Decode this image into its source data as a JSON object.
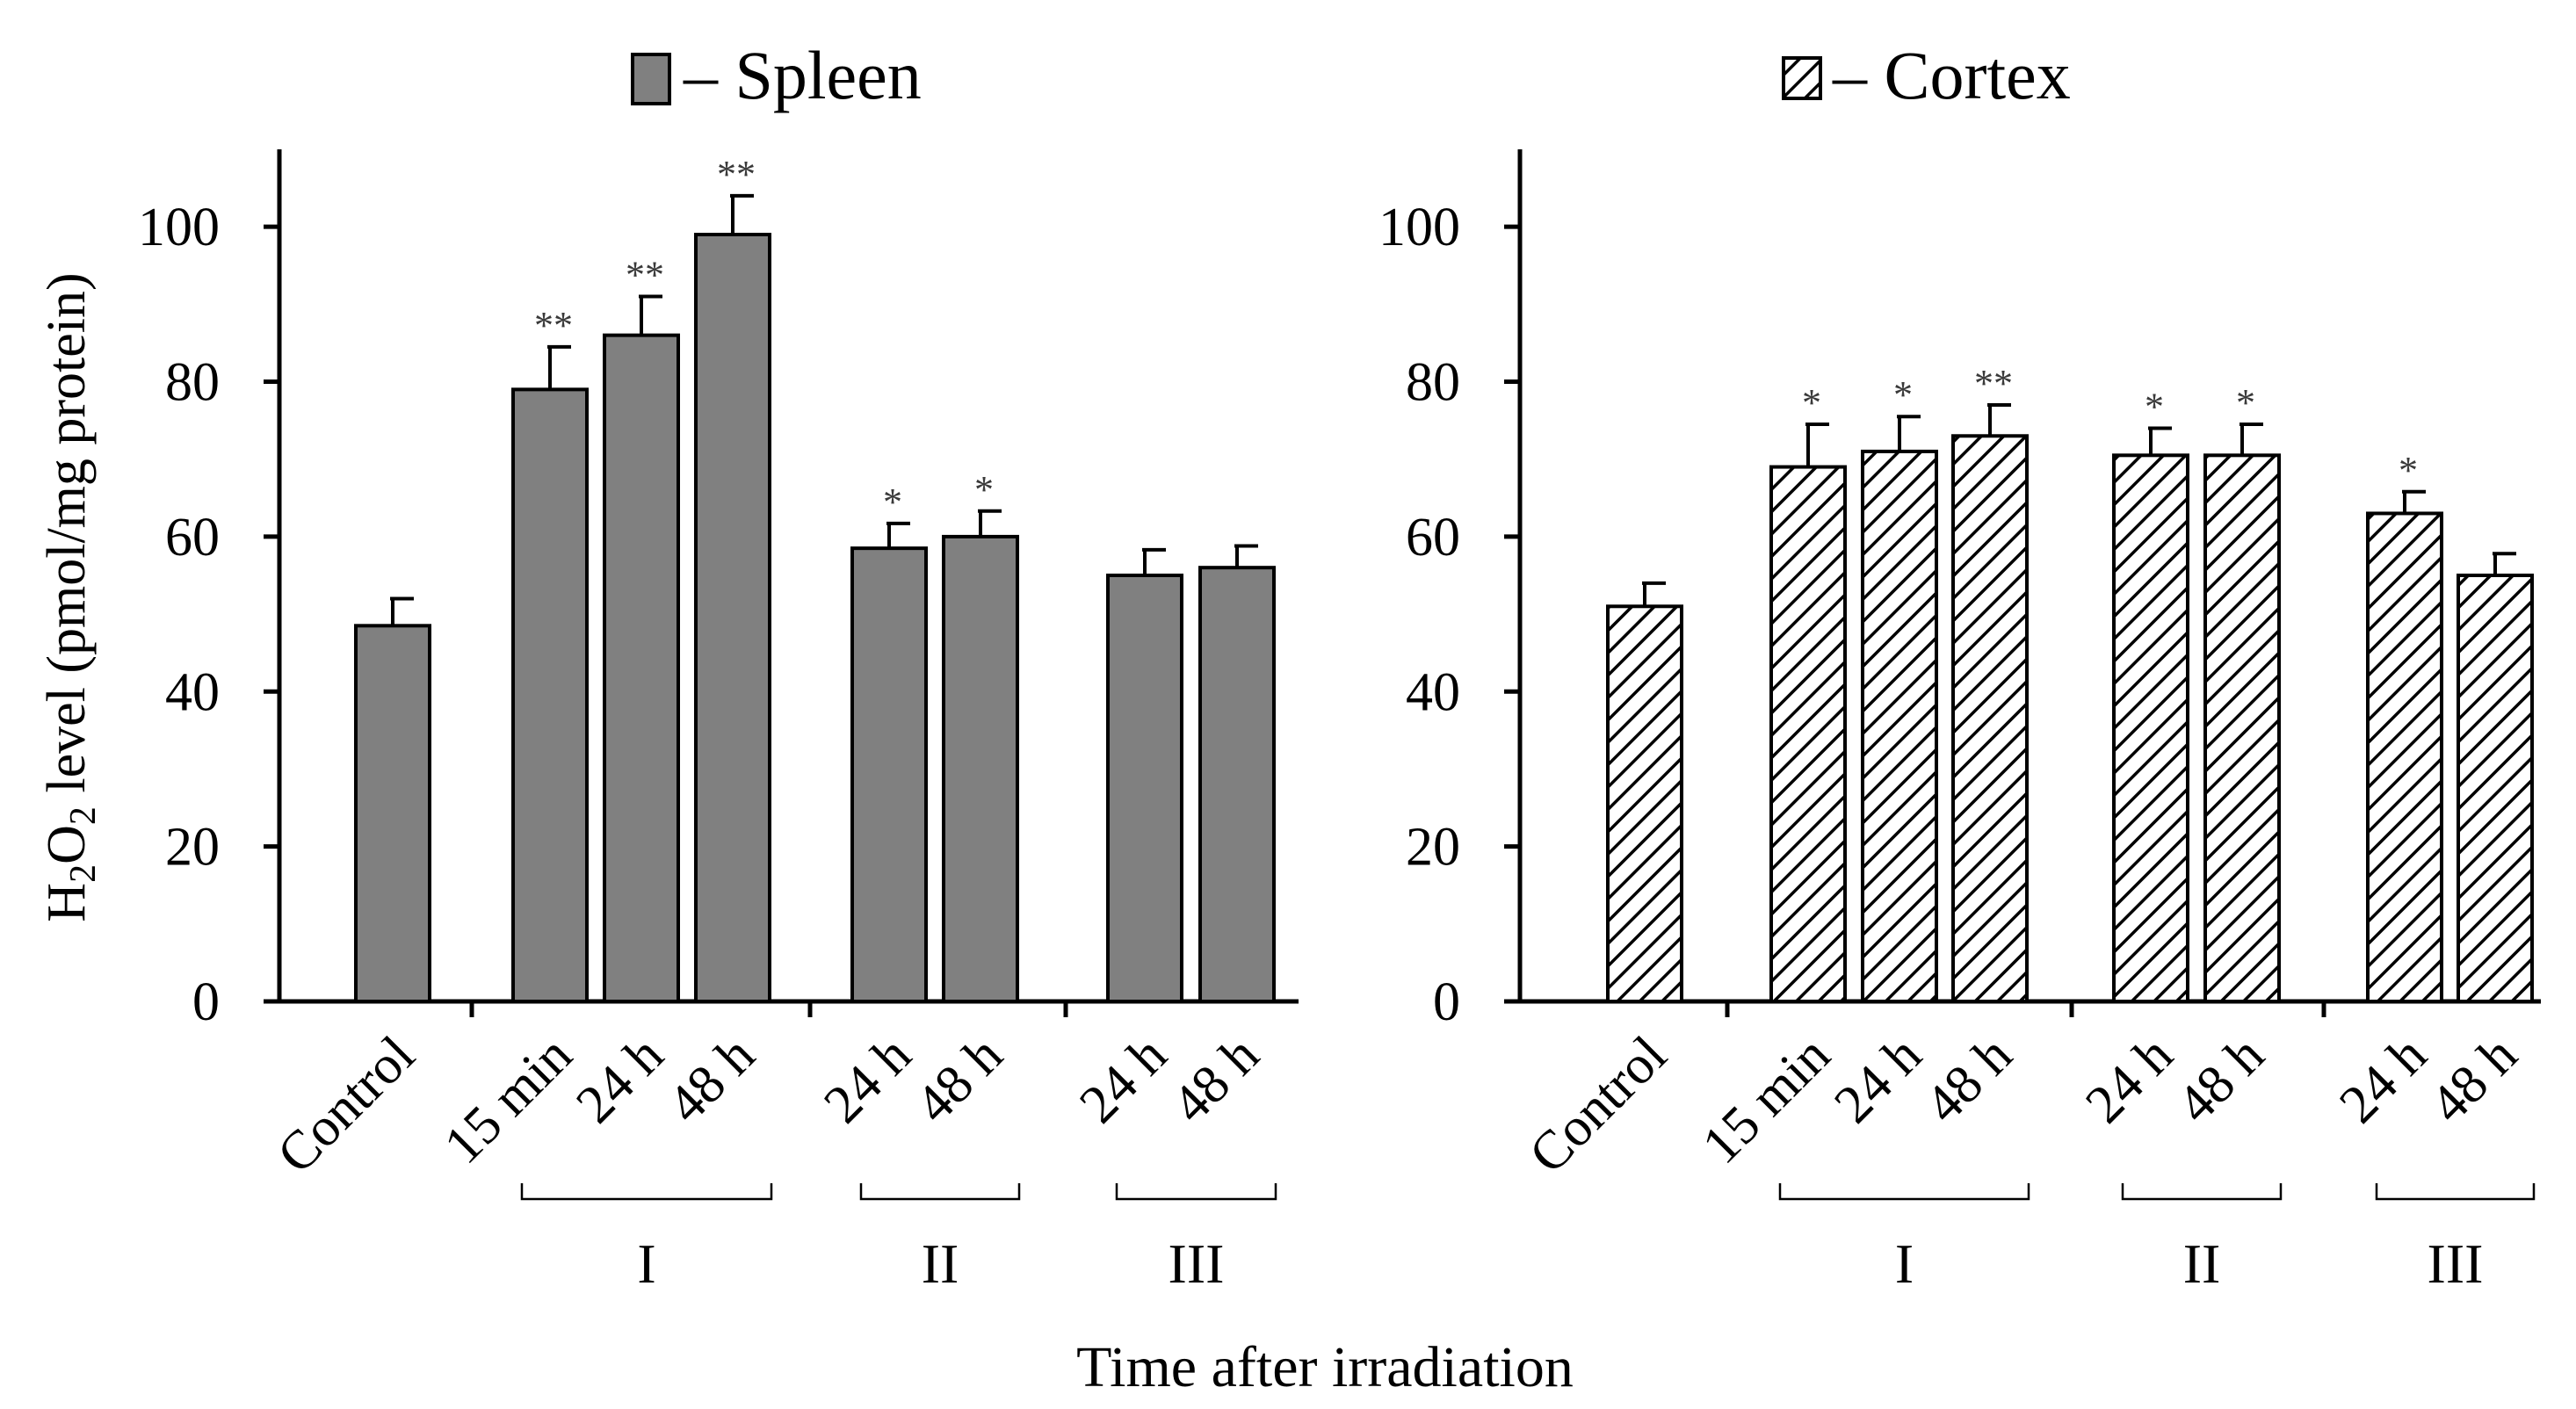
{
  "x_axis_title": "Time after irradiation",
  "colors": {
    "spleen_fill": "#808080",
    "edge": "#000000",
    "hatch_bg": "#ffffff"
  },
  "chart_data": [
    {
      "type": "bar",
      "legend": "– Spleen",
      "fill_style": "solid-gray",
      "ylabel_parts": [
        "H",
        "2",
        "O",
        "2",
        " level (pmol/mg protein)"
      ],
      "ylim": [
        0,
        110
      ],
      "yticks": [
        0,
        20,
        40,
        60,
        80,
        100
      ],
      "ytick_labels": [
        "0",
        "20",
        "40",
        "60",
        "80",
        "100"
      ],
      "categories": [
        "Control",
        "15 min",
        "24 h",
        "48 h",
        "24 h",
        "48 h",
        "24 h",
        "48 h"
      ],
      "values": [
        48.5,
        79,
        86,
        99,
        58.5,
        60,
        55,
        56
      ],
      "errors": [
        3.5,
        5.5,
        5,
        5,
        3.2,
        3.3,
        3.3,
        2.8
      ],
      "significance": [
        "",
        "**",
        "**",
        "**",
        "*",
        "*",
        "",
        ""
      ],
      "groups": [
        {
          "label": "I",
          "from": 1,
          "to": 3
        },
        {
          "label": "II",
          "from": 4,
          "to": 5
        },
        {
          "label": "III",
          "from": 6,
          "to": 7
        }
      ]
    },
    {
      "type": "bar",
      "legend": "– Cortex",
      "fill_style": "hatched",
      "ylim": [
        0,
        110
      ],
      "yticks": [
        0,
        20,
        40,
        60,
        80,
        100
      ],
      "ytick_labels": [
        "0",
        "20",
        "40",
        "60",
        "80",
        "100"
      ],
      "categories": [
        "Control",
        "15 min",
        "24 h",
        "48 h",
        "24 h",
        "48 h",
        "24 h",
        "48 h"
      ],
      "values": [
        51,
        69,
        71,
        73,
        70.5,
        70.5,
        63,
        55
      ],
      "errors": [
        3,
        5.5,
        4.5,
        4,
        3.5,
        4,
        2.8,
        2.8
      ],
      "significance": [
        "",
        "*",
        "*",
        "**",
        "*",
        "*",
        "*",
        ""
      ],
      "groups": [
        {
          "label": "I",
          "from": 1,
          "to": 3
        },
        {
          "label": "II",
          "from": 4,
          "to": 5
        },
        {
          "label": "III",
          "from": 6,
          "to": 7
        }
      ]
    }
  ]
}
